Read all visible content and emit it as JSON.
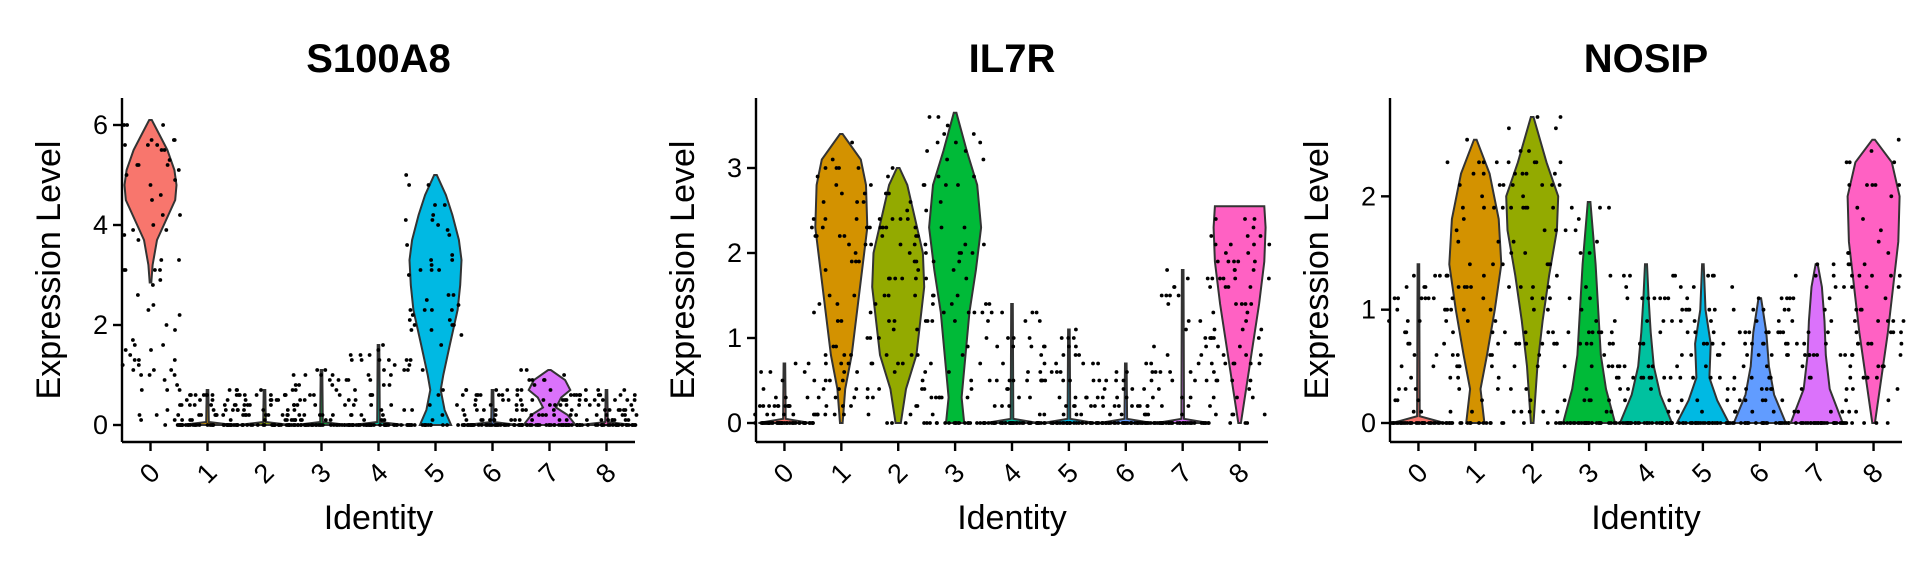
{
  "chart_data": [
    {
      "type": "violin",
      "title": "S100A8",
      "xlabel": "Identity",
      "ylabel": "Expression Level",
      "categories": [
        "0",
        "1",
        "2",
        "3",
        "4",
        "5",
        "6",
        "7",
        "8"
      ],
      "ylim": [
        -0.3,
        6.5
      ],
      "yticks": [
        0,
        2,
        4,
        6
      ],
      "colors": [
        "#F8766D",
        "#D39200",
        "#93AA00",
        "#00BA38",
        "#00C19F",
        "#00B9E3",
        "#619CFF",
        "#DB72FB",
        "#FF61C3"
      ],
      "series": [
        {
          "name": "0",
          "max": 6.1,
          "profile": [
            [
              2.85,
              0.02
            ],
            [
              3.2,
              0.08
            ],
            [
              3.7,
              0.25
            ],
            [
              4.1,
              0.6
            ],
            [
              4.5,
              0.95
            ],
            [
              4.8,
              1.0
            ],
            [
              5.1,
              0.92
            ],
            [
              5.5,
              0.65
            ],
            [
              5.8,
              0.35
            ],
            [
              6.1,
              0.05
            ]
          ]
        },
        {
          "name": "1",
          "max": 0.7,
          "profile": [
            [
              0,
              1.0
            ],
            [
              0.06,
              0.05
            ],
            [
              0.7,
              0.02
            ]
          ]
        },
        {
          "name": "2",
          "max": 0.7,
          "profile": [
            [
              0,
              1.0
            ],
            [
              0.06,
              0.05
            ],
            [
              0.7,
              0.02
            ]
          ]
        },
        {
          "name": "3",
          "max": 1.1,
          "profile": [
            [
              0,
              1.0
            ],
            [
              0.06,
              0.05
            ],
            [
              1.1,
              0.02
            ]
          ]
        },
        {
          "name": "4",
          "max": 1.6,
          "profile": [
            [
              0,
              1.0
            ],
            [
              0.06,
              0.05
            ],
            [
              1.6,
              0.02
            ]
          ]
        },
        {
          "name": "5",
          "max": 5.0,
          "profile": [
            [
              0,
              0.6
            ],
            [
              0.3,
              0.35
            ],
            [
              0.7,
              0.2
            ],
            [
              1.0,
              0.3
            ],
            [
              1.6,
              0.55
            ],
            [
              2.3,
              0.85
            ],
            [
              2.8,
              0.95
            ],
            [
              3.3,
              1.0
            ],
            [
              3.7,
              0.9
            ],
            [
              4.2,
              0.65
            ],
            [
              4.6,
              0.4
            ],
            [
              5.0,
              0.05
            ]
          ]
        },
        {
          "name": "6",
          "max": 0.7,
          "profile": [
            [
              0,
              1.0
            ],
            [
              0.06,
              0.05
            ],
            [
              0.7,
              0.02
            ]
          ]
        },
        {
          "name": "7",
          "max": 1.1,
          "profile": [
            [
              0,
              1.0
            ],
            [
              0.2,
              0.7
            ],
            [
              0.35,
              0.25
            ],
            [
              0.55,
              0.45
            ],
            [
              0.7,
              0.8
            ],
            [
              0.9,
              0.6
            ],
            [
              1.1,
              0.05
            ]
          ]
        },
        {
          "name": "8",
          "max": 0.7,
          "profile": [
            [
              0,
              1.0
            ],
            [
              0.06,
              0.05
            ],
            [
              0.7,
              0.02
            ]
          ]
        }
      ]
    },
    {
      "type": "violin",
      "title": "IL7R",
      "xlabel": "Identity",
      "ylabel": "Expression Level",
      "categories": [
        "0",
        "1",
        "2",
        "3",
        "4",
        "5",
        "6",
        "7",
        "8"
      ],
      "ylim": [
        -0.2,
        3.8
      ],
      "yticks": [
        0,
        1,
        2,
        3
      ],
      "colors": [
        "#F8766D",
        "#D39200",
        "#93AA00",
        "#00BA38",
        "#00C19F",
        "#00B9E3",
        "#619CFF",
        "#DB72FB",
        "#FF61C3"
      ],
      "series": [
        {
          "name": "0",
          "max": 0.7,
          "profile": [
            [
              0,
              1.0
            ],
            [
              0.05,
              0.05
            ],
            [
              0.7,
              0.02
            ]
          ]
        },
        {
          "name": "1",
          "max": 3.4,
          "profile": [
            [
              0,
              0.05
            ],
            [
              0.4,
              0.15
            ],
            [
              0.8,
              0.4
            ],
            [
              1.3,
              0.6
            ],
            [
              1.8,
              0.8
            ],
            [
              2.3,
              1.0
            ],
            [
              2.8,
              0.95
            ],
            [
              3.1,
              0.75
            ],
            [
              3.4,
              0.05
            ]
          ]
        },
        {
          "name": "2",
          "max": 3.0,
          "profile": [
            [
              0,
              0.1
            ],
            [
              0.4,
              0.3
            ],
            [
              0.8,
              0.7
            ],
            [
              1.2,
              0.85
            ],
            [
              1.6,
              1.0
            ],
            [
              2.0,
              0.95
            ],
            [
              2.4,
              0.65
            ],
            [
              2.8,
              0.35
            ],
            [
              3.0,
              0.05
            ]
          ]
        },
        {
          "name": "3",
          "max": 3.65,
          "profile": [
            [
              0,
              0.35
            ],
            [
              0.3,
              0.25
            ],
            [
              0.8,
              0.4
            ],
            [
              1.3,
              0.55
            ],
            [
              1.8,
              0.8
            ],
            [
              2.3,
              1.0
            ],
            [
              2.8,
              0.85
            ],
            [
              3.2,
              0.45
            ],
            [
              3.65,
              0.05
            ]
          ]
        },
        {
          "name": "4",
          "max": 1.4,
          "profile": [
            [
              0,
              1.0
            ],
            [
              0.05,
              0.05
            ],
            [
              1.4,
              0.02
            ]
          ]
        },
        {
          "name": "5",
          "max": 1.1,
          "profile": [
            [
              0,
              1.0
            ],
            [
              0.05,
              0.05
            ],
            [
              1.1,
              0.02
            ]
          ]
        },
        {
          "name": "6",
          "max": 0.7,
          "profile": [
            [
              0,
              1.0
            ],
            [
              0.05,
              0.05
            ],
            [
              0.7,
              0.02
            ]
          ]
        },
        {
          "name": "7",
          "max": 1.8,
          "profile": [
            [
              0,
              1.0
            ],
            [
              0.05,
              0.05
            ],
            [
              1.8,
              0.02
            ]
          ]
        },
        {
          "name": "8",
          "max": 2.55,
          "profile": [
            [
              0,
              0.05
            ],
            [
              0.4,
              0.25
            ],
            [
              0.9,
              0.5
            ],
            [
              1.4,
              0.75
            ],
            [
              1.9,
              0.95
            ],
            [
              2.3,
              1.0
            ],
            [
              2.55,
              0.95
            ]
          ]
        }
      ]
    },
    {
      "type": "violin",
      "title": "NOSIP",
      "xlabel": "Identity",
      "ylabel": "Expression Level",
      "categories": [
        "0",
        "1",
        "2",
        "3",
        "4",
        "5",
        "6",
        "7",
        "8"
      ],
      "ylim": [
        -0.15,
        2.85
      ],
      "yticks": [
        0,
        1,
        2
      ],
      "colors": [
        "#F8766D",
        "#D39200",
        "#93AA00",
        "#00BA38",
        "#00C19F",
        "#00B9E3",
        "#619CFF",
        "#DB72FB",
        "#FF61C3"
      ],
      "series": [
        {
          "name": "0",
          "max": 1.4,
          "profile": [
            [
              0,
              1.0
            ],
            [
              0.06,
              0.05
            ],
            [
              1.4,
              0.02
            ]
          ]
        },
        {
          "name": "1",
          "max": 2.5,
          "profile": [
            [
              0,
              0.35
            ],
            [
              0.3,
              0.2
            ],
            [
              0.6,
              0.45
            ],
            [
              1.0,
              0.75
            ],
            [
              1.4,
              1.0
            ],
            [
              1.8,
              0.9
            ],
            [
              2.2,
              0.55
            ],
            [
              2.5,
              0.05
            ]
          ]
        },
        {
          "name": "2",
          "max": 2.7,
          "profile": [
            [
              0,
              0.05
            ],
            [
              0.5,
              0.2
            ],
            [
              0.9,
              0.4
            ],
            [
              1.3,
              0.65
            ],
            [
              1.7,
              0.95
            ],
            [
              2.0,
              1.0
            ],
            [
              2.3,
              0.55
            ],
            [
              2.7,
              0.05
            ]
          ]
        },
        {
          "name": "3",
          "max": 1.95,
          "profile": [
            [
              0,
              1.0
            ],
            [
              0.3,
              0.65
            ],
            [
              0.6,
              0.45
            ],
            [
              1.0,
              0.35
            ],
            [
              1.4,
              0.25
            ],
            [
              1.95,
              0.05
            ]
          ]
        },
        {
          "name": "4",
          "max": 1.4,
          "profile": [
            [
              0,
              1.0
            ],
            [
              0.25,
              0.55
            ],
            [
              0.5,
              0.3
            ],
            [
              0.8,
              0.18
            ],
            [
              1.1,
              0.1
            ],
            [
              1.4,
              0.04
            ]
          ]
        },
        {
          "name": "5",
          "max": 1.4,
          "profile": [
            [
              0,
              1.0
            ],
            [
              0.2,
              0.55
            ],
            [
              0.4,
              0.25
            ],
            [
              0.7,
              0.3
            ],
            [
              1.0,
              0.1
            ],
            [
              1.4,
              0.03
            ]
          ]
        },
        {
          "name": "6",
          "max": 1.1,
          "profile": [
            [
              0,
              1.0
            ],
            [
              0.25,
              0.55
            ],
            [
              0.5,
              0.35
            ],
            [
              0.8,
              0.25
            ],
            [
              1.1,
              0.05
            ]
          ]
        },
        {
          "name": "7",
          "max": 1.4,
          "profile": [
            [
              0,
              1.0
            ],
            [
              0.3,
              0.5
            ],
            [
              0.6,
              0.35
            ],
            [
              0.9,
              0.3
            ],
            [
              1.2,
              0.2
            ],
            [
              1.4,
              0.04
            ]
          ]
        },
        {
          "name": "8",
          "max": 2.5,
          "profile": [
            [
              0,
              0.05
            ],
            [
              0.4,
              0.3
            ],
            [
              0.8,
              0.55
            ],
            [
              1.2,
              0.75
            ],
            [
              1.6,
              0.95
            ],
            [
              2.0,
              1.0
            ],
            [
              2.3,
              0.7
            ],
            [
              2.5,
              0.05
            ]
          ]
        }
      ]
    }
  ]
}
